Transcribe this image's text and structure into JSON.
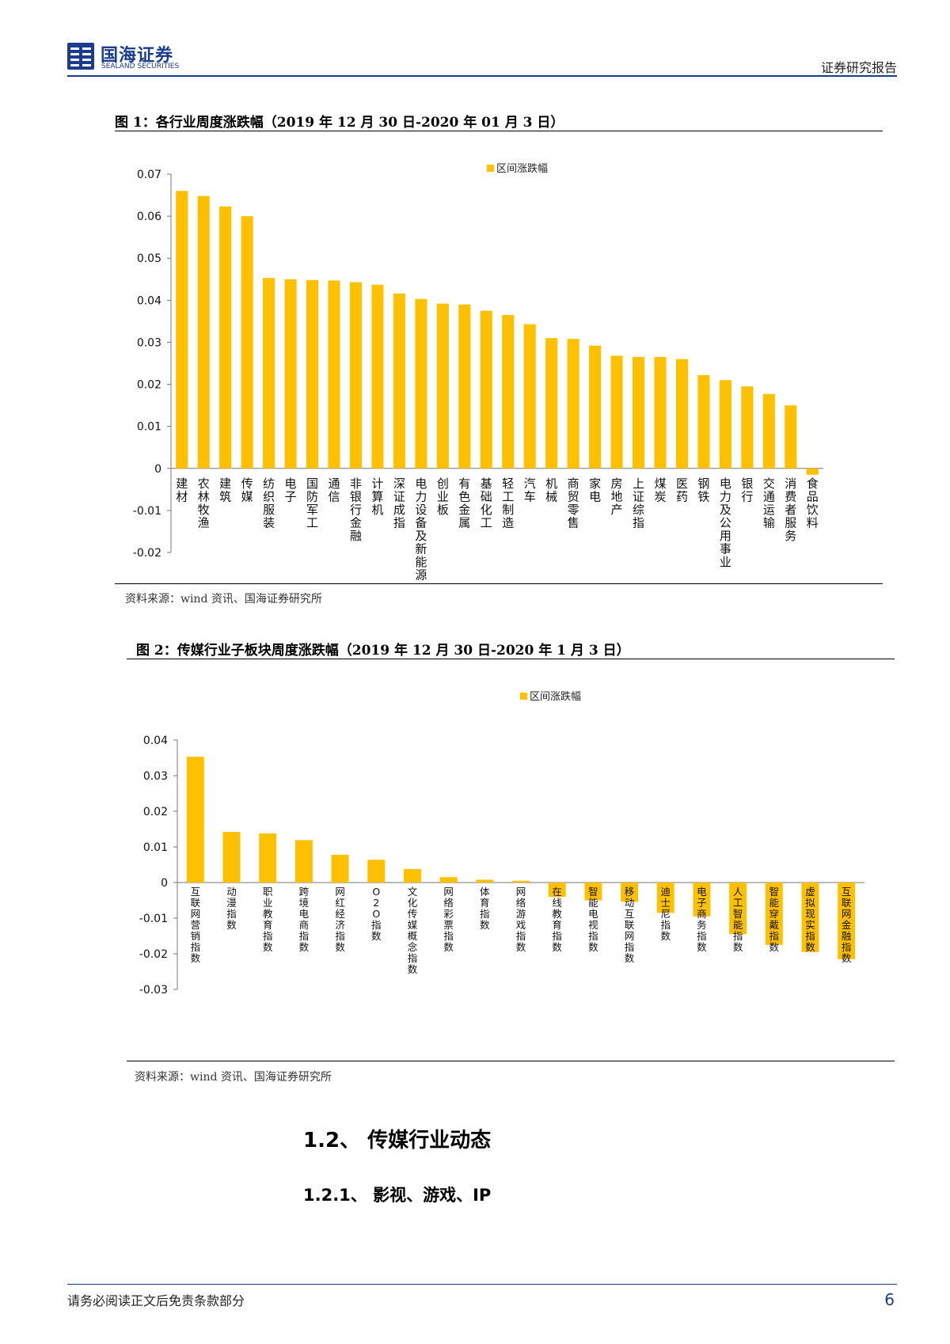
{
  "header": {
    "logo_cn": "国海证券",
    "logo_en": "SEALAND SECURITIES",
    "report_type": "证券研究报告"
  },
  "figure1": {
    "title": "图 1：各行业周度涨跌幅（2019 年 12 月 30 日-2020 年 01 月 3 日）",
    "source": "资料来源：wind 资讯、国海证券研究所"
  },
  "figure2": {
    "title": "图 2：传媒行业子板块周度涨跌幅（2019 年 12 月 30 日-2020 年 1 月 3 日）",
    "source": "资料来源：wind 资讯、国海证券研究所"
  },
  "section": {
    "heading": "1.2、 传媒行业动态",
    "subheading": "1.2.1、 影视、游戏、IP"
  },
  "footer": {
    "disclaimer": "请务必阅读正文后免责条款部分",
    "page_number": "6"
  },
  "colors": {
    "bar": "#FFC000",
    "brand": "#1B3B8C"
  },
  "chart_data": [
    {
      "type": "bar",
      "legend": "区间涨跌幅",
      "ylim": [
        -0.02,
        0.07
      ],
      "yticks": [
        "0.07",
        "0.06",
        "0.05",
        "0.04",
        "0.03",
        "0.02",
        "0.01",
        "0",
        "-0.01",
        "-0.02"
      ],
      "categories": [
        "建材",
        "农林牧渔",
        "建筑",
        "传媒",
        "纺织服装",
        "电子",
        "国防军工",
        "通信",
        "非银行金融",
        "计算机",
        "深证成指",
        "电力设备及新能源",
        "创业板",
        "有色金属",
        "基础化工",
        "轻工制造",
        "汽车",
        "机械",
        "商贸零售",
        "家电",
        "房地产",
        "上证综指",
        "煤炭",
        "医药",
        "钢铁",
        "电力及公用事业",
        "银行",
        "交通运输",
        "消费者服务",
        "食品饮料"
      ],
      "values": [
        0.066,
        0.0648,
        0.0623,
        0.06,
        0.0453,
        0.045,
        0.0448,
        0.0447,
        0.0443,
        0.0437,
        0.0416,
        0.0403,
        0.0392,
        0.039,
        0.0375,
        0.0365,
        0.0343,
        0.031,
        0.0308,
        0.0292,
        0.0268,
        0.0265,
        0.0265,
        0.026,
        0.0222,
        0.021,
        0.0195,
        0.0177,
        0.015,
        -0.0015
      ]
    },
    {
      "type": "bar",
      "legend": "区间涨跌幅",
      "ylim": [
        -0.03,
        0.04
      ],
      "yticks": [
        "0.04",
        "0.03",
        "0.02",
        "0.01",
        "0",
        "-0.01",
        "-0.02",
        "-0.03"
      ],
      "categories": [
        "互联网营销指数",
        "动漫指数",
        "职业教育指数",
        "跨境电商指数",
        "网红经济指数",
        "O2O指数",
        "文化传媒概念指数",
        "网络彩票指数",
        "体育指数",
        "网络游戏指数",
        "在线教育指数",
        "智能电视指数",
        "移动互联网指数",
        "迪士尼指数",
        "电子商务指数",
        "人工智能指数",
        "智能穿戴指数",
        "虚拟现实指数",
        "互联网金融指数"
      ],
      "values": [
        0.0353,
        0.0142,
        0.0138,
        0.0119,
        0.0078,
        0.0064,
        0.0038,
        0.0015,
        0.0008,
        0.0005,
        -0.004,
        -0.005,
        -0.0054,
        -0.0085,
        -0.0095,
        -0.0145,
        -0.0175,
        -0.0195,
        -0.0215
      ]
    }
  ]
}
